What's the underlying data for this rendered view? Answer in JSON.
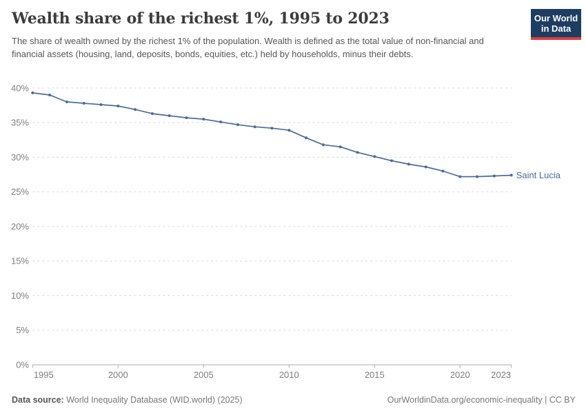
{
  "header": {
    "title": "Wealth share of the richest 1%, 1995 to 2023",
    "subtitle": "The share of wealth owned by the richest 1% of the population. Wealth is defined as the total value of non-financial and financial assets (housing, land, deposits, bonds, equities, etc.) held by households, minus their debts.",
    "logo": {
      "line1": "Our World",
      "line2": "in Data"
    }
  },
  "chart_data": {
    "type": "line",
    "title": "Wealth share of the richest 1%, 1995 to 2023",
    "x": [
      1995,
      1996,
      1997,
      1998,
      1999,
      2000,
      2001,
      2002,
      2003,
      2004,
      2005,
      2006,
      2007,
      2008,
      2009,
      2010,
      2011,
      2012,
      2013,
      2014,
      2015,
      2016,
      2017,
      2018,
      2019,
      2020,
      2021,
      2022,
      2023
    ],
    "series": [
      {
        "name": "Saint Lucia",
        "color": "#4c6a9c",
        "values": [
          39.3,
          39.0,
          38.0,
          37.8,
          37.6,
          37.4,
          36.9,
          36.3,
          36.0,
          35.7,
          35.5,
          35.1,
          34.7,
          34.4,
          34.2,
          33.9,
          32.8,
          31.8,
          31.5,
          30.7,
          30.1,
          29.5,
          29.0,
          28.6,
          28.0,
          27.2,
          27.2,
          27.3,
          27.4
        ]
      }
    ],
    "xlabel": "",
    "ylabel": "",
    "xlim": [
      1995,
      2023
    ],
    "ylim": [
      0,
      40
    ],
    "x_ticks": [
      1995,
      2000,
      2005,
      2010,
      2015,
      2020,
      2023
    ],
    "y_ticks": [
      0,
      5,
      10,
      15,
      20,
      25,
      30,
      35,
      40
    ],
    "y_tick_suffix": "%",
    "grid": "horizontal-dashed",
    "legend_position": "end-of-line-label",
    "end_label": "Saint Lucia"
  },
  "footer": {
    "datasource_label": "Data source:",
    "datasource_text": " World Inequality Database (WID.world) (2025)",
    "attribution": "OurWorldinData.org/economic-inequality | CC BY"
  },
  "colors": {
    "line": "#4c6a9c",
    "end_label": "#4c6a9c",
    "gridline": "#d9d9d9",
    "axis": "#adadad",
    "tick_label": "#7e7e7e",
    "title": "#3c3c3c",
    "subtitle": "#565656",
    "logo_bg": "#1d3d63",
    "logo_stripe": "#dc3e3e"
  }
}
